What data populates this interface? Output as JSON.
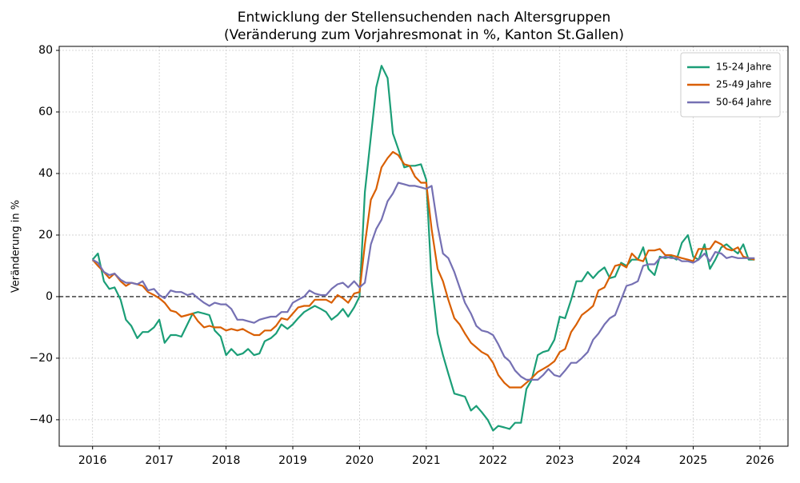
{
  "chart_data": {
    "type": "line",
    "title": "Entwicklung der Stellensuchenden nach Altersgruppen",
    "subtitle": "(Veränderung zum Vorjahresmonat in %, Kanton St.Gallen)",
    "y_label": "Veränderung in %",
    "x": [
      2016,
      2016.08,
      2016.17,
      2016.25,
      2016.33,
      2016.42,
      2016.5,
      2016.58,
      2016.67,
      2016.75,
      2016.83,
      2016.92,
      2017,
      2017.08,
      2017.17,
      2017.25,
      2017.33,
      2017.42,
      2017.5,
      2017.58,
      2017.67,
      2017.75,
      2017.83,
      2017.92,
      2018,
      2018.08,
      2018.17,
      2018.25,
      2018.33,
      2018.42,
      2018.5,
      2018.58,
      2018.67,
      2018.75,
      2018.83,
      2018.92,
      2019,
      2019.08,
      2019.17,
      2019.25,
      2019.33,
      2019.42,
      2019.5,
      2019.58,
      2019.67,
      2019.75,
      2019.83,
      2019.92,
      2020,
      2020.08,
      2020.17,
      2020.25,
      2020.33,
      2020.42,
      2020.5,
      2020.58,
      2020.67,
      2020.75,
      2020.83,
      2020.92,
      2021,
      2021.08,
      2021.17,
      2021.25,
      2021.33,
      2021.42,
      2021.5,
      2021.58,
      2021.67,
      2021.75,
      2021.83,
      2021.92,
      2022,
      2022.08,
      2022.17,
      2022.25,
      2022.33,
      2022.42,
      2022.5,
      2022.58,
      2022.67,
      2022.75,
      2022.83,
      2022.92,
      2023,
      2023.08,
      2023.17,
      2023.25,
      2023.33,
      2023.42,
      2023.5,
      2023.58,
      2023.67,
      2023.75,
      2023.83,
      2023.92,
      2024,
      2024.08,
      2024.17,
      2024.25,
      2024.33,
      2024.42,
      2024.5,
      2024.58,
      2024.67,
      2024.75,
      2024.83,
      2024.92,
      2025,
      2025.08,
      2025.17,
      2025.25,
      2025.33,
      2025.42,
      2025.5,
      2025.58,
      2025.67,
      2025.75,
      2025.83,
      2025.92
    ],
    "series": [
      {
        "name": "15-24 Jahre",
        "color": "#1b9e77",
        "values": [
          12,
          14,
          5,
          2.5,
          3,
          -1,
          -7.5,
          -9.5,
          -13.5,
          -11.5,
          -11.5,
          -10,
          -7.5,
          -15,
          -12.5,
          -12.5,
          -13,
          -9,
          -5.5,
          -5,
          -5.5,
          -6,
          -11,
          -13,
          -19,
          -17,
          -19,
          -18.5,
          -17,
          -19,
          -18.5,
          -14.5,
          -13.5,
          -12,
          -9,
          -10.5,
          -9,
          -7,
          -5,
          -4,
          -3,
          -4,
          -5,
          -7.5,
          -6,
          -4,
          -6.5,
          -3.5,
          0,
          34,
          52,
          68,
          75,
          71,
          53,
          48,
          42,
          42.5,
          42.5,
          43,
          38,
          5,
          -12,
          -19,
          -25,
          -31.5,
          -32,
          -32.5,
          -37,
          -35.5,
          -37.5,
          -40,
          -43.5,
          -42,
          -42.5,
          -43,
          -41,
          -41,
          -30,
          -27,
          -19,
          -18,
          -17.5,
          -14,
          -6.5,
          -7,
          -1,
          5,
          5,
          8,
          6,
          8,
          9.5,
          6,
          6.5,
          11,
          10,
          12,
          12,
          16,
          9,
          7,
          13,
          12.5,
          13,
          12,
          17.5,
          20,
          13,
          12,
          17,
          9,
          12,
          16,
          17,
          15.5,
          14,
          17,
          12,
          12
        ]
      },
      {
        "name": "25-49 Jahre",
        "color": "#d95f02",
        "values": [
          12,
          10,
          8,
          6,
          7.5,
          5,
          3.5,
          4.5,
          4,
          3.5,
          1.5,
          0.5,
          -0.5,
          -2,
          -4.5,
          -5,
          -6.5,
          -6,
          -5.5,
          -8,
          -10,
          -9.5,
          -10,
          -10,
          -11,
          -10.5,
          -11,
          -10.5,
          -11.5,
          -12.5,
          -12.5,
          -11,
          -11,
          -9.5,
          -7,
          -7.5,
          -5.5,
          -3.5,
          -3,
          -3,
          -1,
          -1,
          -1,
          -2,
          0.5,
          -0.5,
          -2,
          1,
          1.5,
          17,
          31.5,
          35,
          42,
          45,
          47,
          46,
          43,
          42.5,
          39,
          37,
          37,
          22,
          9,
          5,
          -1,
          -7,
          -9,
          -12,
          -15,
          -16.5,
          -18,
          -19,
          -21.5,
          -25.5,
          -28,
          -29.5,
          -29.5,
          -29.5,
          -28,
          -26.5,
          -24.5,
          -23.5,
          -22.5,
          -21,
          -18,
          -17,
          -11.5,
          -9,
          -6,
          -4.5,
          -3,
          2,
          3,
          6.5,
          10,
          10.5,
          9.5,
          14,
          12,
          11.5,
          15,
          15,
          15.5,
          13.5,
          13.5,
          13,
          12.5,
          12,
          11.5,
          15.5,
          15.5,
          15.5,
          18,
          17,
          15.5,
          15,
          16,
          13,
          12.5,
          12
        ]
      },
      {
        "name": "50-64 Jahre",
        "color": "#7570b3",
        "values": [
          12,
          11,
          8,
          7,
          7.5,
          5.5,
          4.5,
          4.5,
          4,
          5,
          2,
          2.5,
          0.5,
          -0.5,
          2,
          1.5,
          1.5,
          0.5,
          1,
          -0.5,
          -2,
          -3,
          -2,
          -2.5,
          -2.5,
          -4,
          -7.5,
          -7.5,
          -8,
          -8.5,
          -7.5,
          -7,
          -6.5,
          -6.5,
          -5,
          -5,
          -2,
          -1,
          0,
          2,
          1,
          0.5,
          0.5,
          2.5,
          4,
          4.5,
          3,
          5,
          3,
          4.5,
          17,
          22,
          25,
          31,
          33.5,
          37,
          36.5,
          36,
          36,
          35.5,
          35,
          36,
          23,
          14,
          12.5,
          8,
          3,
          -2,
          -5.5,
          -9.5,
          -11,
          -11.5,
          -12.5,
          -15.5,
          -19.5,
          -21,
          -24,
          -26,
          -27,
          -27,
          -27,
          -25.5,
          -23.5,
          -25.5,
          -26,
          -24,
          -21.5,
          -21.5,
          -20,
          -18,
          -14,
          -12,
          -9,
          -7,
          -6,
          -1,
          3.5,
          4,
          5,
          10,
          10.5,
          10.5,
          12.5,
          13,
          12.5,
          12.5,
          11.5,
          11.5,
          11,
          12,
          14,
          11.5,
          14.5,
          14,
          12.5,
          13,
          12.5,
          12.5,
          12.5,
          12.5
        ]
      }
    ],
    "xlim": [
      2015.5,
      2026.42
    ],
    "ylim": [
      -48.6,
      81.3
    ],
    "xticks": [
      2016,
      2017,
      2018,
      2019,
      2020,
      2021,
      2022,
      2023,
      2024,
      2025,
      2026
    ],
    "yticks": [
      {
        "value": -40,
        "label": "−40"
      },
      {
        "value": -20,
        "label": "−20"
      },
      0,
      20,
      40,
      60,
      80
    ],
    "reference_line": 0,
    "grid": true,
    "legend": "upper right"
  }
}
